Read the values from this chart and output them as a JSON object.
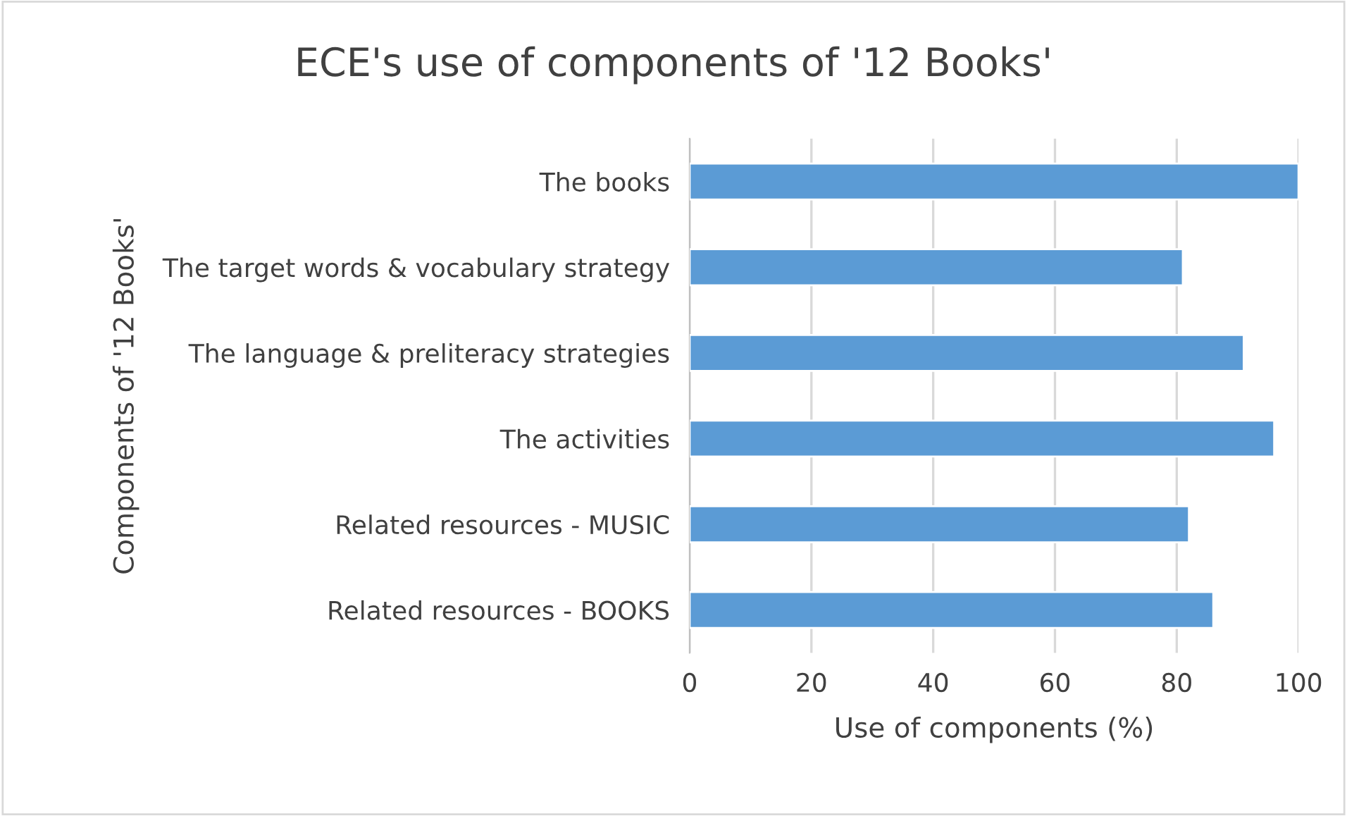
{
  "chart_data": {
    "type": "bar",
    "orientation": "horizontal",
    "title": "ECE's use of components of '12 Books'",
    "xlabel": "Use of components (%)",
    "ylabel": "Components of '12 Books'",
    "categories": [
      "The books",
      "The target words & vocabulary strategy",
      "The language & preliteracy strategies",
      "The activities",
      "Related resources - MUSIC",
      "Related resources - BOOKS"
    ],
    "values": [
      100,
      81,
      91,
      96,
      82,
      86
    ],
    "color": "#5b9bd5",
    "xlim": [
      0,
      100
    ],
    "xticks": [
      0,
      20,
      40,
      60,
      80,
      100
    ],
    "grid": "x",
    "legend": false
  }
}
